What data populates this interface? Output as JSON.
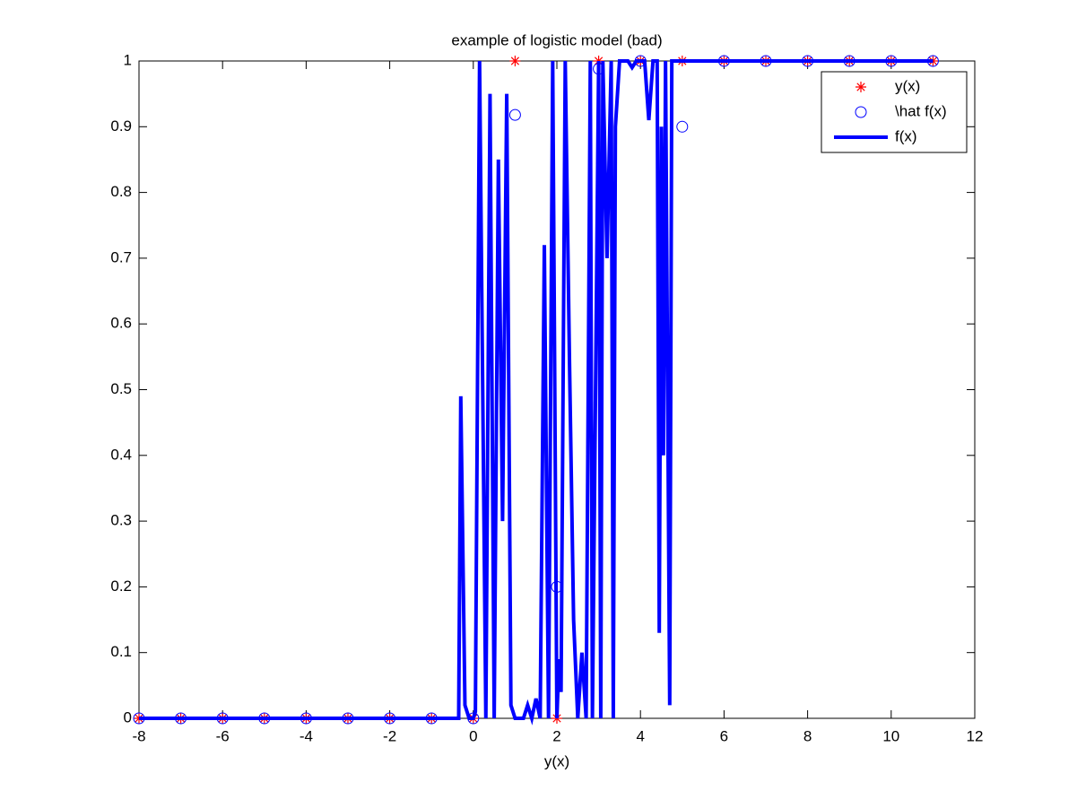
{
  "chart_data": {
    "type": "line",
    "title": "example of logistic model (bad)",
    "x_label": "y(x)",
    "xlim": [
      -8,
      12
    ],
    "xticks": [
      -8,
      -6,
      -4,
      -2,
      0,
      2,
      4,
      6,
      8,
      10,
      12
    ],
    "ylim": [
      0,
      1
    ],
    "yticks": [
      0,
      0.1,
      0.2,
      0.3,
      0.4,
      0.5,
      0.6,
      0.7,
      0.8,
      0.9,
      1
    ],
    "legend": "northeast",
    "series": [
      {
        "name": "y(x)",
        "color": "#ff0000",
        "mode": "markers",
        "marker": "star",
        "x": [
          -8,
          -7,
          -6,
          -5,
          -4,
          -3,
          -2,
          -1,
          0,
          1,
          2,
          3,
          4,
          5,
          6,
          7,
          8,
          9,
          10,
          11
        ],
        "values": [
          0,
          0,
          0,
          0,
          0,
          0,
          0,
          0,
          0,
          1,
          0,
          1,
          1,
          1,
          1,
          1,
          1,
          1,
          1,
          1
        ]
      },
      {
        "name": "\\hat f(x)",
        "color": "#0000ff",
        "mode": "markers",
        "marker": "circle",
        "x": [
          -8,
          -7,
          -6,
          -5,
          -4,
          -3,
          -2,
          -1,
          0,
          1,
          2,
          3,
          4,
          5,
          6,
          7,
          8,
          9,
          10,
          11
        ],
        "values": [
          0,
          0,
          0,
          0,
          0,
          0,
          0,
          0,
          0,
          0.918,
          0.2,
          0.988,
          1,
          0.9,
          1,
          1,
          1,
          1,
          1,
          1
        ]
      },
      {
        "name": "f(x)",
        "color": "#0000ff",
        "mode": "line",
        "x": [
          -8,
          -0.5,
          -0.35,
          -0.3,
          -0.2,
          -0.1,
          0.0,
          0.05,
          0.15,
          0.3,
          0.4,
          0.5,
          0.6,
          0.7,
          0.8,
          0.9,
          1.0,
          1.1,
          1.2,
          1.3,
          1.4,
          1.5,
          1.6,
          1.7,
          1.8,
          1.9,
          2.0,
          2.05,
          2.1,
          2.2,
          2.3,
          2.4,
          2.5,
          2.6,
          2.7,
          2.8,
          2.85,
          3.0,
          3.05,
          3.1,
          3.2,
          3.3,
          3.35,
          3.4,
          3.5,
          3.6,
          3.7,
          3.8,
          3.9,
          4.0,
          4.1,
          4.2,
          4.3,
          4.4,
          4.45,
          4.5,
          4.55,
          4.6,
          4.7,
          4.75,
          4.8,
          5.0,
          11
        ],
        "values": [
          0,
          0,
          0,
          0.49,
          0.02,
          0,
          0,
          0.01,
          1,
          0,
          0.95,
          0,
          0.85,
          0.3,
          0.95,
          0.02,
          0,
          0,
          0,
          0.02,
          0,
          0.03,
          0,
          0.72,
          0,
          1,
          0,
          0.09,
          0.04,
          1,
          0.55,
          0.15,
          0,
          0.1,
          0,
          1,
          0,
          1,
          0,
          1,
          0.7,
          1,
          0,
          0.9,
          1,
          1,
          1,
          0.99,
          1,
          1,
          1,
          0.91,
          1,
          1,
          0.13,
          0.9,
          0.4,
          1,
          0.02,
          1,
          1,
          1,
          1
        ]
      }
    ]
  }
}
